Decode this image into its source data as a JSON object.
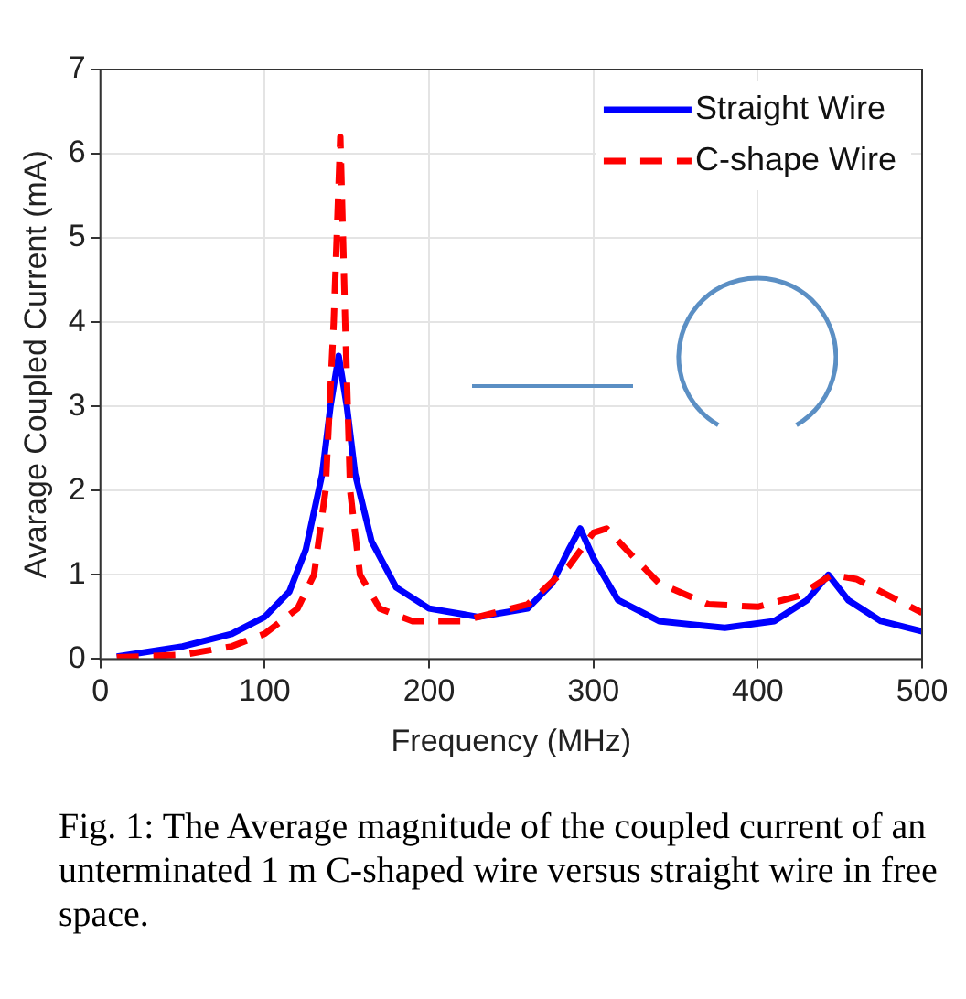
{
  "chart_data": {
    "type": "line",
    "xlabel": "Frequency (MHz)",
    "ylabel": "Avarage Coupled Current (mA)",
    "xlim": [
      0,
      500
    ],
    "xticks": [
      0,
      100,
      200,
      300,
      400,
      500
    ],
    "ylim": [
      0,
      7
    ],
    "yticks": [
      0,
      1,
      2,
      3,
      4,
      5,
      6,
      7
    ],
    "grid": true,
    "legend": "top right",
    "marker": "none",
    "annotations": [
      "Fig. 1: The Average magnitude of the coupled current of an unterminated 1 m C-shaped wire versus straight wire in free space."
    ],
    "series": [
      {
        "name": "Straight Wire",
        "color": "#0000ff",
        "line_style": "solid",
        "x": [
          10,
          50,
          80,
          100,
          115,
          125,
          135,
          140,
          145,
          150,
          155,
          165,
          180,
          200,
          230,
          260,
          275,
          285,
          292,
          300,
          315,
          340,
          380,
          410,
          430,
          443,
          455,
          475,
          500
        ],
        "values": [
          0.03,
          0.15,
          0.3,
          0.5,
          0.8,
          1.3,
          2.2,
          3.0,
          3.6,
          3.0,
          2.2,
          1.4,
          0.85,
          0.6,
          0.5,
          0.6,
          0.9,
          1.3,
          1.55,
          1.2,
          0.7,
          0.45,
          0.37,
          0.45,
          0.7,
          1.0,
          0.7,
          0.45,
          0.33
        ]
      },
      {
        "name": "C-shape Wire",
        "color": "#ff0000",
        "line_style": "dashed",
        "x": [
          10,
          50,
          80,
          100,
          120,
          130,
          137,
          142,
          146,
          149,
          152,
          158,
          170,
          190,
          220,
          260,
          285,
          300,
          308,
          320,
          340,
          370,
          400,
          425,
          445,
          460,
          480,
          500
        ],
        "values": [
          0.02,
          0.05,
          0.15,
          0.3,
          0.6,
          1.0,
          2.0,
          4.0,
          6.2,
          4.0,
          2.0,
          1.0,
          0.6,
          0.45,
          0.45,
          0.65,
          1.1,
          1.5,
          1.55,
          1.3,
          0.9,
          0.65,
          0.62,
          0.75,
          1.0,
          0.95,
          0.75,
          0.55
        ]
      }
    ]
  }
}
